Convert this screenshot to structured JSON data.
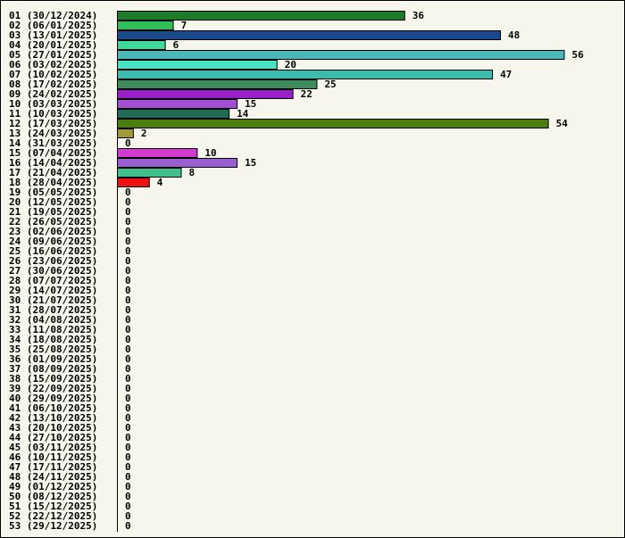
{
  "chart_data": {
    "type": "bar",
    "orientation": "horizontal",
    "grid": false,
    "xlim": [
      0,
      56
    ],
    "categories": [
      "01 (30/12/2024)",
      "02 (06/01/2025)",
      "03 (13/01/2025)",
      "04 (20/01/2025)",
      "05 (27/01/2025)",
      "06 (03/02/2025)",
      "07 (10/02/2025)",
      "08 (17/02/2025)",
      "09 (24/02/2025)",
      "10 (03/03/2025)",
      "11 (10/03/2025)",
      "12 (17/03/2025)",
      "13 (24/03/2025)",
      "14 (31/03/2025)",
      "15 (07/04/2025)",
      "16 (14/04/2025)",
      "17 (21/04/2025)",
      "18 (28/04/2025)",
      "19 (05/05/2025)",
      "20 (12/05/2025)",
      "21 (19/05/2025)",
      "22 (26/05/2025)",
      "23 (02/06/2025)",
      "24 (09/06/2025)",
      "25 (16/06/2025)",
      "26 (23/06/2025)",
      "27 (30/06/2025)",
      "28 (07/07/2025)",
      "29 (14/07/2025)",
      "30 (21/07/2025)",
      "31 (28/07/2025)",
      "32 (04/08/2025)",
      "33 (11/08/2025)",
      "34 (18/08/2025)",
      "35 (25/08/2025)",
      "36 (01/09/2025)",
      "37 (08/09/2025)",
      "38 (15/09/2025)",
      "39 (22/09/2025)",
      "40 (29/09/2025)",
      "41 (06/10/2025)",
      "42 (13/10/2025)",
      "43 (20/10/2025)",
      "44 (27/10/2025)",
      "45 (03/11/2025)",
      "46 (10/11/2025)",
      "47 (17/11/2025)",
      "48 (24/11/2025)",
      "49 (01/12/2025)",
      "50 (08/12/2025)",
      "51 (15/12/2025)",
      "52 (22/12/2025)",
      "53 (29/12/2025)"
    ],
    "values": [
      36,
      7,
      48,
      6,
      56,
      20,
      47,
      25,
      22,
      15,
      14,
      54,
      2,
      0,
      10,
      15,
      8,
      4,
      0,
      0,
      0,
      0,
      0,
      0,
      0,
      0,
      0,
      0,
      0,
      0,
      0,
      0,
      0,
      0,
      0,
      0,
      0,
      0,
      0,
      0,
      0,
      0,
      0,
      0,
      0,
      0,
      0,
      0,
      0,
      0,
      0,
      0,
      0
    ],
    "colors": [
      "#1e7b2a",
      "#2fbf5a",
      "#1b4a8c",
      "#3fd89a",
      "#4ab8b8",
      "#46e3c4",
      "#3cbcae",
      "#3d8a5c",
      "#9a1fc9",
      "#a24fd6",
      "#1f6b55",
      "#4a7f0f",
      "#a09a3a",
      "#bbbbbb",
      "#d23ad2",
      "#9a5fd0",
      "#3fbf8a",
      "#ee1111"
    ]
  }
}
